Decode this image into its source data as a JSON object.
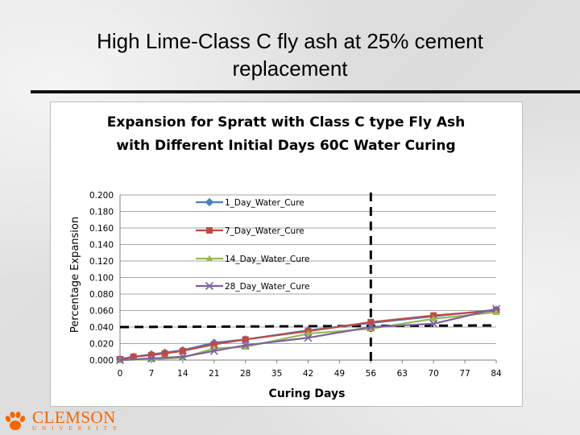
{
  "slide": {
    "title_line1": "High Lime-Class C fly ash at 25% cement",
    "title_line2": "replacement"
  },
  "logo": {
    "name": "CLEMSON",
    "sub": "UNIVERSITY",
    "icon": "tiger-paw-icon",
    "color": "#f56600"
  },
  "chart_data": {
    "type": "line",
    "title_line1": "Expansion for  Spratt with Class C type Fly Ash",
    "title_line2": "with Different  Initial Days 60C Water Curing",
    "xlabel": "Curing Days",
    "ylabel": "Percentage Expansion",
    "xlim": [
      0,
      84
    ],
    "ylim": [
      0,
      0.2
    ],
    "x_ticks": [
      "0",
      "7",
      "14",
      "21",
      "28",
      "35",
      "42",
      "49",
      "56",
      "63",
      "70",
      "77",
      "84"
    ],
    "y_ticks": [
      "0.000",
      "0.020",
      "0.040",
      "0.060",
      "0.080",
      "0.100",
      "0.120",
      "0.140",
      "0.160",
      "0.180",
      "0.200"
    ],
    "grid": true,
    "legend_position": "upper-left inside plot",
    "series": [
      {
        "name": "1_Day_Water_Cure",
        "color": "#4a7ebb",
        "marker": "diamond",
        "x": [
          0,
          3,
          7,
          10,
          14,
          21,
          28,
          42,
          56,
          70,
          84
        ],
        "y": [
          0.001,
          0.004,
          0.007,
          0.009,
          0.012,
          0.021,
          0.025,
          0.036,
          0.045,
          0.053,
          0.061
        ]
      },
      {
        "name": "7_Day_Water_Cure",
        "color": "#be4b48",
        "marker": "square",
        "x": [
          0,
          3,
          7,
          10,
          14,
          21,
          28,
          42,
          56,
          70,
          84
        ],
        "y": [
          0.001,
          0.004,
          0.006,
          0.008,
          0.011,
          0.019,
          0.025,
          0.035,
          0.046,
          0.054,
          0.06
        ]
      },
      {
        "name": "14_Day_Water_Cure",
        "color": "#98b954",
        "marker": "triangle",
        "x": [
          0,
          7,
          14,
          21,
          28,
          42,
          56,
          70,
          84
        ],
        "y": [
          0.0,
          0.001,
          0.003,
          0.014,
          0.016,
          0.032,
          0.038,
          0.05,
          0.058
        ]
      },
      {
        "name": "28_Day_Water_Cure",
        "color": "#7d60a0",
        "marker": "x",
        "x": [
          0,
          7,
          14,
          21,
          28,
          42,
          56,
          70,
          84
        ],
        "y": [
          0.0,
          0.002,
          0.004,
          0.011,
          0.018,
          0.027,
          0.04,
          0.044,
          0.062
        ]
      }
    ],
    "reference_lines": [
      {
        "orientation": "horizontal",
        "y_start": 0.04,
        "y_end": 0.042,
        "style": "dashed",
        "color": "#000000"
      },
      {
        "orientation": "vertical",
        "x": 56,
        "style": "dashed",
        "color": "#000000"
      }
    ]
  }
}
